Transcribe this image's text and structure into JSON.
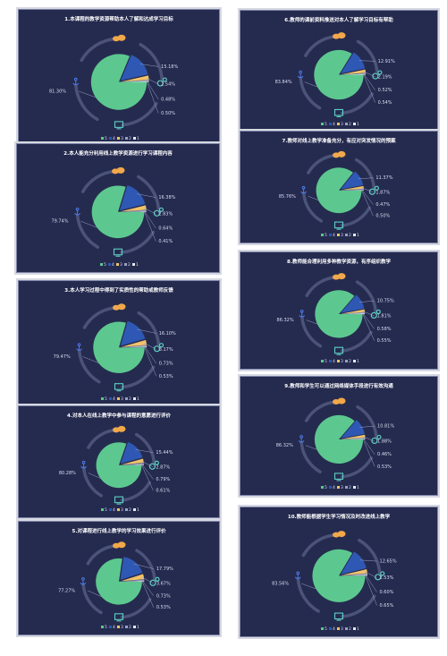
{
  "legend_labels": [
    "5",
    "4",
    "3",
    "2",
    "1"
  ],
  "colors": [
    "#5cc88f",
    "#2f58b4",
    "#f1c36a",
    "#9aa0c6",
    "#e8e8ee"
  ],
  "chart_data": [
    {
      "type": "pie",
      "title": "1.本课程的教学资源帮助本人了解和达成学习目标",
      "categories": [
        "5",
        "4",
        "3",
        "2",
        "1"
      ],
      "values": [
        81.3,
        15.18,
        2.54,
        0.48,
        0.5
      ],
      "labels": [
        "81.30%",
        "15.18%",
        "2.54%",
        "0.48%",
        "0.50%"
      ]
    },
    {
      "type": "pie",
      "title": "2.本人能充分利用线上教学资源进行学习课程内容",
      "categories": [
        "5",
        "4",
        "3",
        "2",
        "1"
      ],
      "values": [
        79.74,
        16.38,
        2.83,
        0.64,
        0.41
      ],
      "labels": [
        "79.74%",
        "16.38%",
        "2.83%",
        "0.64%",
        "0.41%"
      ]
    },
    {
      "type": "pie",
      "title": "3.本人学习过程中得到了实质性的帮助或教师反馈",
      "categories": [
        "5",
        "4",
        "3",
        "2",
        "1"
      ],
      "values": [
        79.47,
        16.1,
        3.17,
        0.73,
        0.53
      ],
      "labels": [
        "79.47%",
        "16.10%",
        "3.17%",
        "0.73%",
        "0.53%"
      ]
    },
    {
      "type": "pie",
      "title": "4.对本人在线上教学中参与课程的意愿进行评价",
      "categories": [
        "5",
        "4",
        "3",
        "2",
        "1"
      ],
      "values": [
        80.28,
        15.44,
        2.87,
        0.79,
        0.61
      ],
      "labels": [
        "80.28%",
        "15.44%",
        "2.87%",
        "0.79%",
        "0.61%"
      ]
    },
    {
      "type": "pie",
      "title": "5.对课程进行线上教学的学习效果进行评价",
      "categories": [
        "5",
        "4",
        "3",
        "2",
        "1"
      ],
      "values": [
        77.27,
        17.79,
        3.67,
        0.73,
        0.53
      ],
      "labels": [
        "77.27%",
        "17.79%",
        "3.67%",
        "0.73%",
        "0.53%"
      ]
    },
    {
      "type": "pie",
      "title": "6.教师的课前资料推送对本人了解学习目标有帮助",
      "categories": [
        "5",
        "4",
        "3",
        "2",
        "1"
      ],
      "values": [
        83.84,
        12.91,
        2.19,
        0.52,
        0.54
      ],
      "labels": [
        "83.84%",
        "12.91%",
        "2.19%",
        "0.52%",
        "0.54%"
      ]
    },
    {
      "type": "pie",
      "title": "7.教师对线上教学准备充分，有应对突发情况的预案",
      "categories": [
        "5",
        "4",
        "3",
        "2",
        "1"
      ],
      "values": [
        85.76,
        11.37,
        1.87,
        0.47,
        0.5
      ],
      "labels": [
        "85.76%",
        "11.37%",
        "1.87%",
        "0.47%",
        "0.50%"
      ]
    },
    {
      "type": "pie",
      "title": "8.教师能合理利用多种教学资源，有序组织教学",
      "categories": [
        "5",
        "4",
        "3",
        "2",
        "1"
      ],
      "values": [
        86.32,
        10.75,
        1.81,
        0.58,
        0.55
      ],
      "labels": [
        "86.32%",
        "10.75%",
        "1.81%",
        "0.58%",
        "0.55%"
      ]
    },
    {
      "type": "pie",
      "title": "9.教师和学生可以通过网络媒体手段进行有效沟通",
      "categories": [
        "5",
        "4",
        "3",
        "2",
        "1"
      ],
      "values": [
        86.32,
        10.81,
        1.88,
        0.46,
        0.53
      ],
      "labels": [
        "86.32%",
        "10.81%",
        "1.88%",
        "0.46%",
        "0.53%"
      ]
    },
    {
      "type": "pie",
      "title": "10.教师能根据学生学习情况及时改进线上教学",
      "categories": [
        "5",
        "4",
        "3",
        "2",
        "1"
      ],
      "values": [
        83.56,
        12.65,
        2.53,
        0.6,
        0.65
      ],
      "labels": [
        "83.56%",
        "12.65%",
        "2.53%",
        "0.60%",
        "0.65%"
      ]
    }
  ]
}
